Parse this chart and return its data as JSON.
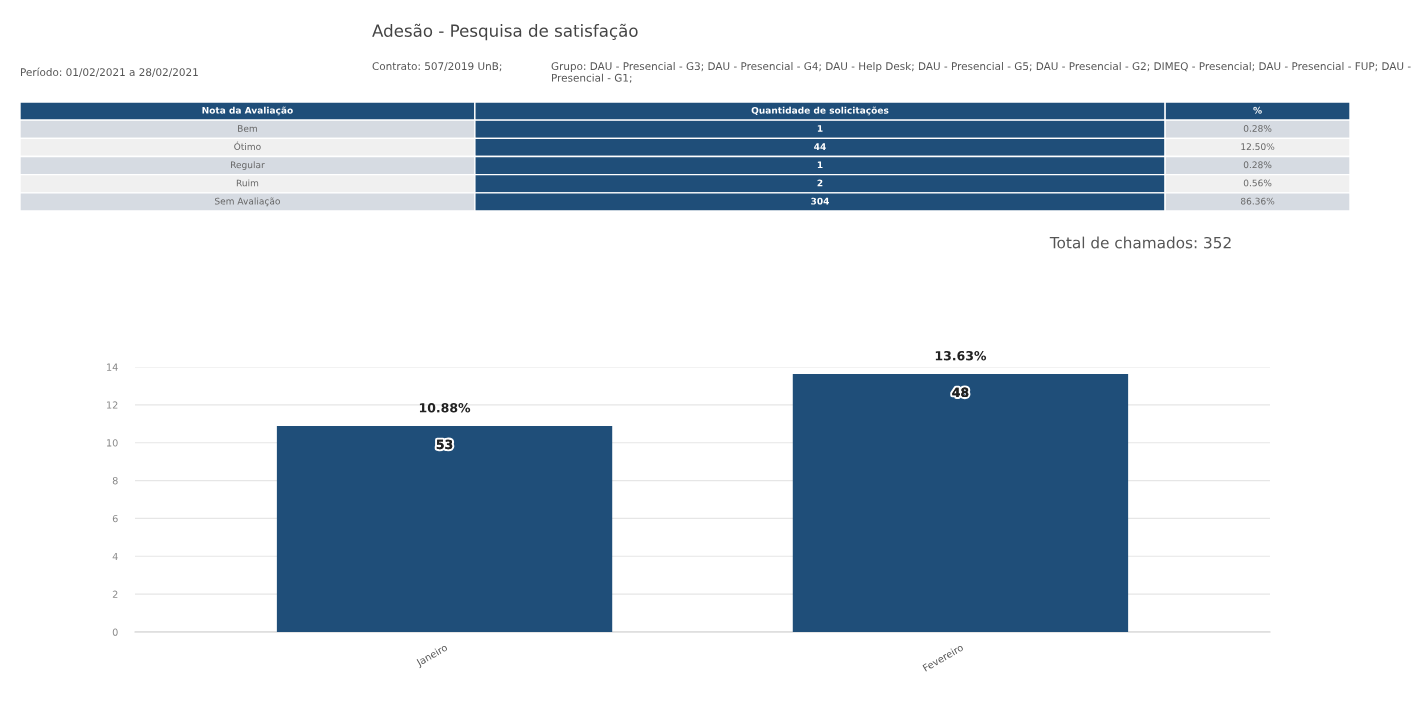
{
  "chart_data": [
    {
      "type": "other",
      "title": "Adesão - Pesquisa de satisfação",
      "annotations": [
        "Período: 01/02/2021 a 28/02/2021",
        "Contrato: 507/2019 UnB;",
        "Grupo: DAU - Presencial - G3; DAU - Presencial - G4; DAU - Help Desk; DAU - Presencial - G5; DAU - Presencial - G2; DIMEQ - Presencial; DAU - Presencial - FUP; DAU - Presencial - G1;"
      ]
    },
    {
      "type": "other",
      "annotations": [
        "Nota da Avaliação"
      ],
      "categories": [
        "Quantidade de solicitações",
        "%"
      ],
      "y_categories": [
        "Bem",
        "Ótimo",
        "Regular",
        "Ruim",
        "Sem Avaliação"
      ],
      "cell_labels": [
        [
          "1",
          "0.28%"
        ],
        [
          "44",
          "12.50%"
        ],
        [
          "1",
          "0.28%"
        ],
        [
          "2",
          "0.56%"
        ],
        [
          "304",
          "86.36%"
        ]
      ],
      "colors": [
        "#1f4e79",
        null
      ]
    },
    {
      "type": "bar",
      "categories": [
        "Janeiro",
        "Fevereiro"
      ],
      "values": [
        10.88,
        13.63
      ],
      "color": "#1f4e79",
      "value_labels": [
        "10.88%",
        "13.63%"
      ],
      "annotations": [
        "Total de chamados: 352",
        {
          "text": "53",
          "x": "Janeiro",
          "y": 10.88
        },
        {
          "text": "48",
          "x": "Fevereiro",
          "y": 13.63
        }
      ],
      "ylim": [
        0,
        14
      ],
      "yticks": [
        0,
        2,
        4,
        6,
        8,
        10,
        12,
        14
      ],
      "grid": "y",
      "legend": false
    }
  ]
}
